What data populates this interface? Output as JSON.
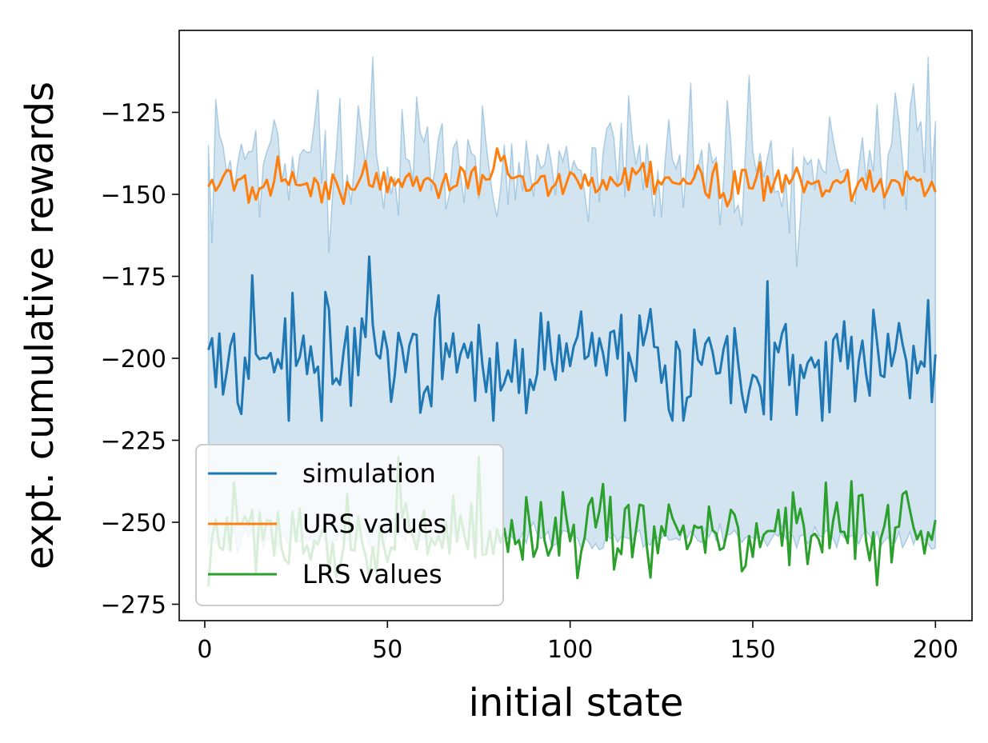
{
  "chart_data": {
    "type": "line",
    "title": "",
    "xlabel": "initial state",
    "ylabel": "expt. cumulative rewards",
    "xlim": [
      -7,
      210
    ],
    "ylim": [
      -280,
      -100
    ],
    "xticks": [
      0,
      50,
      100,
      150,
      200
    ],
    "yticks": [
      -275,
      -250,
      -225,
      -200,
      -175,
      -150,
      -125
    ],
    "xtick_labels": [
      "0",
      "50",
      "100",
      "150",
      "200"
    ],
    "ytick_labels": [
      "−275",
      "−250",
      "−225",
      "−200",
      "−175",
      "−150",
      "−125"
    ],
    "grid": false,
    "legend_position": "lower-left",
    "series": [
      {
        "name": "simulation",
        "color": "#1f77b4",
        "center": -200,
        "amplitude": 14,
        "min": -219,
        "max": -169,
        "x_start": 1,
        "x_end": 200
      },
      {
        "name": "URS values",
        "color": "#ff7f0e",
        "center": -146,
        "amplitude": 5,
        "min": -154,
        "max": -136,
        "x_start": 1,
        "x_end": 200
      },
      {
        "name": "LRS values",
        "color": "#2ca02c",
        "center": -254,
        "amplitude": 11,
        "min": -272,
        "max": -230,
        "x_start": 1,
        "x_end": 200
      }
    ],
    "band": {
      "name": "simulation spread",
      "color": "#1f77b4",
      "upper_center": -140,
      "upper_amplitude": 17,
      "upper_max": -108,
      "lower_center": -255,
      "lower_amplitude": 3,
      "lower_min": -262
    },
    "legend": [
      {
        "label": "simulation",
        "color": "#1f77b4"
      },
      {
        "label": "URS values",
        "color": "#ff7f0e"
      },
      {
        "label": "LRS values",
        "color": "#2ca02c"
      }
    ]
  }
}
